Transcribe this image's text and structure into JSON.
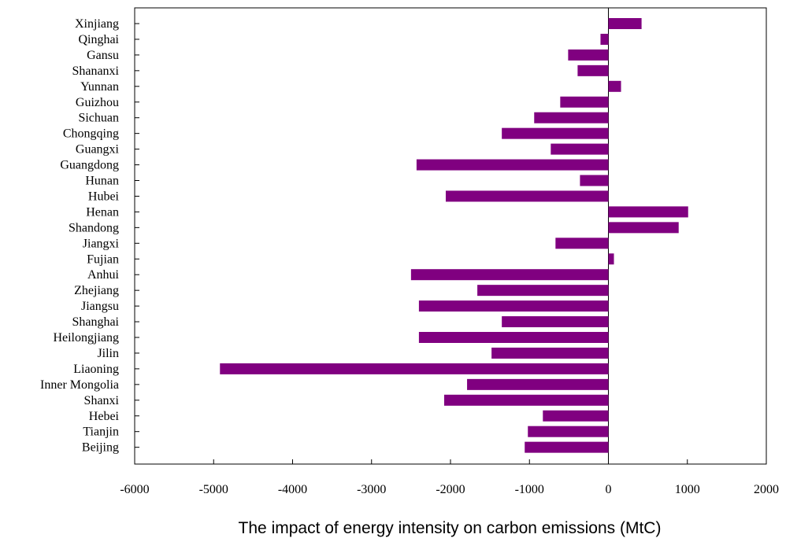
{
  "chart_data": {
    "type": "bar",
    "orientation": "horizontal",
    "xlabel": "The impact of energy intensity on carbon emissions (MtC)",
    "ylabel": "",
    "xlim": [
      -6000,
      2000
    ],
    "xticks": [
      -6000,
      -5000,
      -4000,
      -3000,
      -2000,
      -1000,
      0,
      1000,
      2000
    ],
    "tick_labels": [
      "-6000",
      "-5000",
      "-4000",
      "-3000",
      "-2000",
      "-1000",
      "0",
      "1000",
      "2000"
    ],
    "grid": false,
    "bar_color": "#800080",
    "categories": [
      "Xinjiang",
      "Qinghai",
      "Gansu",
      "Shananxi",
      "Yunnan",
      "Guizhou",
      "Sichuan",
      "Chongqing",
      "Guangxi",
      "Guangdong",
      "Hunan",
      "Hubei",
      "Henan",
      "Shandong",
      "Jiangxi",
      "Fujian",
      "Anhui",
      "Zhejiang",
      "Jiangsu",
      "Shanghai",
      "Heilongjiang",
      "Jilin",
      "Liaoning",
      "Inner Mongolia",
      "Shanxi",
      "Hebei",
      "Tianjin",
      "Beijing"
    ],
    "values": [
      420,
      -100,
      -510,
      -390,
      160,
      -610,
      -940,
      -1350,
      -730,
      -2430,
      -360,
      -2060,
      1010,
      890,
      -670,
      70,
      -2500,
      -1660,
      -2400,
      -1350,
      -2400,
      -1480,
      -4920,
      -1790,
      -2080,
      -830,
      -1020,
      -1060
    ]
  }
}
